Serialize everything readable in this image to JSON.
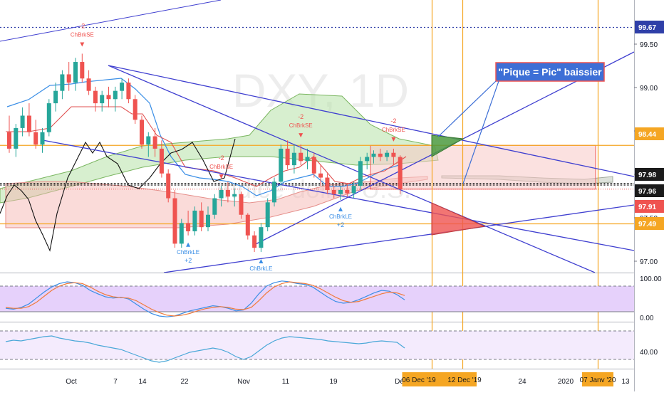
{
  "symbol_watermark": "DXY, 1D",
  "instrument_watermark": "Indice dollar U.S.",
  "callout": "\"Pique = Pic\" baissier",
  "colors": {
    "up": "#26a69a",
    "down": "#ef5350",
    "trendline": "#3f3fd0",
    "orange": "#f5a623",
    "kijun": "#3a8ee6",
    "tenkan": "#e05050",
    "chikou": "#111111",
    "stoch_k": "#3a8ee6",
    "stoch_d": "#f07a3a",
    "rsi": "#4aa8d8",
    "stoch_band": "#e6d1fb",
    "rsi_band": "#f4ebfd"
  },
  "chart_data": [
    {
      "type": "candlestick",
      "title": "DXY, 1D",
      "subtitle": "Indice dollar U.S.",
      "y_axis": {
        "ticks": [
          "99.50",
          "99.00",
          "98.50",
          "98.00",
          "97.50",
          "97.00"
        ],
        "ylim": [
          96.9,
          100.2
        ]
      },
      "x_axis": {
        "ticks": [
          "Oct",
          "7",
          "14",
          "22",
          "Nov",
          "11",
          "19",
          "Déc",
          "24",
          "2020",
          "13"
        ]
      },
      "price_labels": [
        {
          "value": "99.67",
          "color": "#2f3fa8"
        },
        {
          "value": "98.44",
          "color": "#f5a623"
        },
        {
          "value": "97.98",
          "color": "#1b1b1b"
        },
        {
          "value": "97.96",
          "color": "#1b1b1b"
        },
        {
          "value": "97.91",
          "color": "#ef5350"
        },
        {
          "value": "97.49",
          "color": "#f5a623"
        }
      ],
      "date_labels": [
        "06 Dec '19",
        "12 Dec '19",
        "07 Janv '20"
      ],
      "candles": [
        [
          98.6,
          98.8,
          98.35,
          98.4
        ],
        [
          98.4,
          98.7,
          98.3,
          98.65
        ],
        [
          98.65,
          98.9,
          98.55,
          98.8
        ],
        [
          98.8,
          98.95,
          98.55,
          98.6
        ],
        [
          98.6,
          98.75,
          98.4,
          98.45
        ],
        [
          98.45,
          98.65,
          98.35,
          98.6
        ],
        [
          98.6,
          99.0,
          98.55,
          98.95
        ],
        [
          98.95,
          99.2,
          98.85,
          99.1
        ],
        [
          99.1,
          99.35,
          99.0,
          99.3
        ],
        [
          99.3,
          99.45,
          99.1,
          99.2
        ],
        [
          99.2,
          99.5,
          99.1,
          99.45
        ],
        [
          99.45,
          99.55,
          99.2,
          99.25
        ],
        [
          99.25,
          99.35,
          99.05,
          99.1
        ],
        [
          99.1,
          99.15,
          98.85,
          98.95
        ],
        [
          98.95,
          99.1,
          98.85,
          99.05
        ],
        [
          99.05,
          99.15,
          98.9,
          99.0
        ],
        [
          99.0,
          99.15,
          98.85,
          99.1
        ],
        [
          99.1,
          99.25,
          99.0,
          99.2
        ],
        [
          99.2,
          99.25,
          98.95,
          99.0
        ],
        [
          99.0,
          99.05,
          98.7,
          98.75
        ],
        [
          98.75,
          98.8,
          98.4,
          98.45
        ],
        [
          98.45,
          98.6,
          98.3,
          98.55
        ],
        [
          98.55,
          98.65,
          98.3,
          98.4
        ],
        [
          98.4,
          98.5,
          98.05,
          98.1
        ],
        [
          98.1,
          98.15,
          97.75,
          97.8
        ],
        [
          97.8,
          97.9,
          97.2,
          97.25
        ],
        [
          97.25,
          97.55,
          97.2,
          97.5
        ],
        [
          97.5,
          97.65,
          97.35,
          97.4
        ],
        [
          97.4,
          97.7,
          97.35,
          97.65
        ],
        [
          97.65,
          97.75,
          97.4,
          97.45
        ],
        [
          97.45,
          97.7,
          97.4,
          97.6
        ],
        [
          97.6,
          97.85,
          97.55,
          97.8
        ],
        [
          97.8,
          97.95,
          97.7,
          97.9
        ],
        [
          97.9,
          98.0,
          97.75,
          97.82
        ],
        [
          97.82,
          97.92,
          97.7,
          97.85
        ],
        [
          97.85,
          97.88,
          97.55,
          97.6
        ],
        [
          97.6,
          97.62,
          97.3,
          97.35
        ],
        [
          97.35,
          97.4,
          97.15,
          97.2
        ],
        [
          97.2,
          97.5,
          97.15,
          97.45
        ],
        [
          97.45,
          97.8,
          97.4,
          97.75
        ],
        [
          97.75,
          98.05,
          97.7,
          98.0
        ],
        [
          98.0,
          98.45,
          97.95,
          98.4
        ],
        [
          98.4,
          98.5,
          98.15,
          98.2
        ],
        [
          98.2,
          98.45,
          98.1,
          98.35
        ],
        [
          98.35,
          98.45,
          98.2,
          98.25
        ],
        [
          98.25,
          98.4,
          98.15,
          98.3
        ],
        [
          98.3,
          98.35,
          98.05,
          98.1
        ],
        [
          98.1,
          98.2,
          97.95,
          98.05
        ],
        [
          98.05,
          98.1,
          97.85,
          97.9
        ],
        [
          97.9,
          97.95,
          97.8,
          97.85
        ],
        [
          97.85,
          97.95,
          97.78,
          97.9
        ],
        [
          97.9,
          97.98,
          97.82,
          97.86
        ],
        [
          97.86,
          98.0,
          97.8,
          97.95
        ],
        [
          97.95,
          98.3,
          97.9,
          98.25
        ],
        [
          98.25,
          98.35,
          98.15,
          98.3
        ],
        [
          98.3,
          98.38,
          98.22,
          98.34
        ],
        [
          98.34,
          98.4,
          98.25,
          98.3
        ],
        [
          98.3,
          98.38,
          98.25,
          98.35
        ],
        [
          98.35,
          98.4,
          98.2,
          98.3
        ],
        [
          98.3,
          98.32,
          97.85,
          97.91
        ]
      ],
      "signals": [
        {
          "candle": 11,
          "label": "ChBrkSE",
          "value": "-2",
          "direction": "short"
        },
        {
          "candle": 32,
          "label": "ChBrkSE",
          "value": "-2",
          "direction": "short"
        },
        {
          "candle": 44,
          "label": "ChBrkSE",
          "value": "-2",
          "direction": "short"
        },
        {
          "candle": 58,
          "label": "ChBrkSE",
          "value": "-2",
          "direction": "short"
        },
        {
          "candle": 27,
          "label": "ChBrkLE",
          "value": "+2",
          "direction": "long"
        },
        {
          "candle": 38,
          "label": "ChBrkLE",
          "value": "+2",
          "direction": "long"
        },
        {
          "candle": 50,
          "label": "ChBrkLE",
          "value": "+2",
          "direction": "long"
        }
      ]
    },
    {
      "type": "line",
      "name": "stochastic",
      "y_axis": {
        "ticks": [
          "100.00",
          "0.00"
        ],
        "ylim": [
          0,
          100
        ]
      },
      "series": [
        {
          "values": [
            28,
            26,
            30,
            38,
            52,
            66,
            78,
            86,
            90,
            88,
            82,
            70,
            62,
            55,
            52,
            54,
            50,
            38,
            26,
            16,
            10,
            8,
            10,
            16,
            22,
            26,
            30,
            34,
            32,
            28,
            22,
            24,
            40,
            62,
            80,
            88,
            92,
            90,
            86,
            84,
            78,
            66,
            54,
            44,
            40,
            42,
            48,
            56,
            64,
            70,
            68,
            60,
            48
          ]
        },
        {
          "values": [
            30,
            28,
            28,
            32,
            42,
            56,
            70,
            80,
            86,
            88,
            86,
            78,
            68,
            60,
            55,
            53,
            52,
            46,
            36,
            26,
            18,
            12,
            10,
            12,
            16,
            22,
            27,
            30,
            32,
            30,
            26,
            25,
            30,
            46,
            64,
            78,
            86,
            90,
            88,
            86,
            82,
            74,
            64,
            54,
            46,
            42,
            44,
            50,
            56,
            62,
            66,
            64,
            58
          ]
        }
      ]
    },
    {
      "type": "line",
      "name": "rsi",
      "y_axis": {
        "ticks": [
          "40.00"
        ]
      },
      "series": [
        {
          "values": [
            55,
            57,
            56,
            58,
            60,
            62,
            63,
            60,
            58,
            56,
            55,
            53,
            50,
            48,
            46,
            44,
            40,
            36,
            32,
            28,
            26,
            28,
            32,
            36,
            40,
            42,
            44,
            46,
            44,
            40,
            34,
            30,
            34,
            42,
            50,
            56,
            60,
            62,
            61,
            60,
            59,
            58,
            56,
            55,
            54,
            53,
            52,
            53,
            55,
            56,
            55,
            54,
            46
          ]
        }
      ]
    }
  ]
}
